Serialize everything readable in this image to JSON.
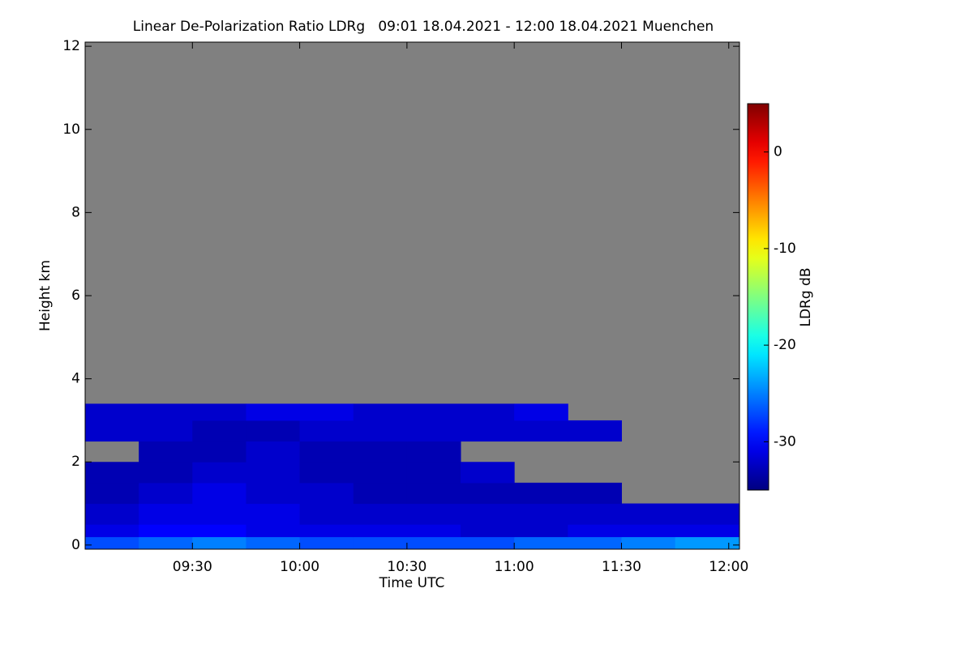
{
  "chart_data": {
    "type": "heatmap",
    "title": "Linear De-Polarization Ratio LDRg   09:01 18.04.2021 - 12:00 18.04.2021 Muenchen",
    "xlabel": "Time UTC",
    "ylabel": "Height km",
    "colorbar_label": "LDRg dB",
    "xlim": [
      9.0,
      12.05
    ],
    "ylim": [
      -0.1,
      12.1
    ],
    "xticks": [
      {
        "value": 9.5,
        "label": "09:30"
      },
      {
        "value": 10.0,
        "label": "10:00"
      },
      {
        "value": 10.5,
        "label": "10:30"
      },
      {
        "value": 11.0,
        "label": "11:00"
      },
      {
        "value": 11.5,
        "label": "11:30"
      },
      {
        "value": 12.0,
        "label": "12:00"
      }
    ],
    "yticks": [
      0,
      2,
      4,
      6,
      8,
      10,
      12
    ],
    "clim": [
      -35,
      5
    ],
    "cticks": [
      0,
      -10,
      -20,
      -30
    ],
    "colormap": "jet",
    "missing_color": "#808080",
    "x_bins": [
      9.0,
      9.25,
      9.5,
      9.75,
      10.0,
      10.25,
      10.5,
      10.75,
      11.0,
      11.25,
      11.5,
      11.75,
      12.05
    ],
    "y_bins": [
      -0.1,
      0.2,
      0.5,
      1.0,
      1.5,
      2.0,
      2.5,
      3.0,
      3.4
    ],
    "z": [
      [
        -27,
        -26,
        -25,
        -26,
        -27,
        -27,
        -27,
        -27,
        -26,
        -26,
        -25,
        -24
      ],
      [
        -31,
        -30,
        -30,
        -31,
        -31,
        -31,
        -31,
        -32,
        -32,
        -31,
        -31,
        -31
      ],
      [
        -32,
        -31,
        -31,
        -31,
        -32,
        -32,
        -32,
        -32,
        -32,
        -32,
        -32,
        -32
      ],
      [
        -33,
        -32,
        -31,
        -32,
        -32,
        -33,
        -33,
        -33,
        -33,
        -33,
        null,
        null
      ],
      [
        -33,
        -33,
        -32,
        -32,
        -33,
        -33,
        -33,
        -32,
        null,
        null,
        null,
        null
      ],
      [
        null,
        -33,
        -33,
        -32,
        -33,
        -33,
        -33,
        null,
        null,
        null,
        null,
        null
      ],
      [
        -32,
        -32,
        -33,
        -33,
        -32,
        -32,
        -32,
        -32,
        -32,
        -32,
        null,
        null
      ],
      [
        -32,
        -32,
        -32,
        -31,
        -31,
        -32,
        -32,
        -32,
        -31,
        null,
        null,
        null
      ]
    ]
  }
}
